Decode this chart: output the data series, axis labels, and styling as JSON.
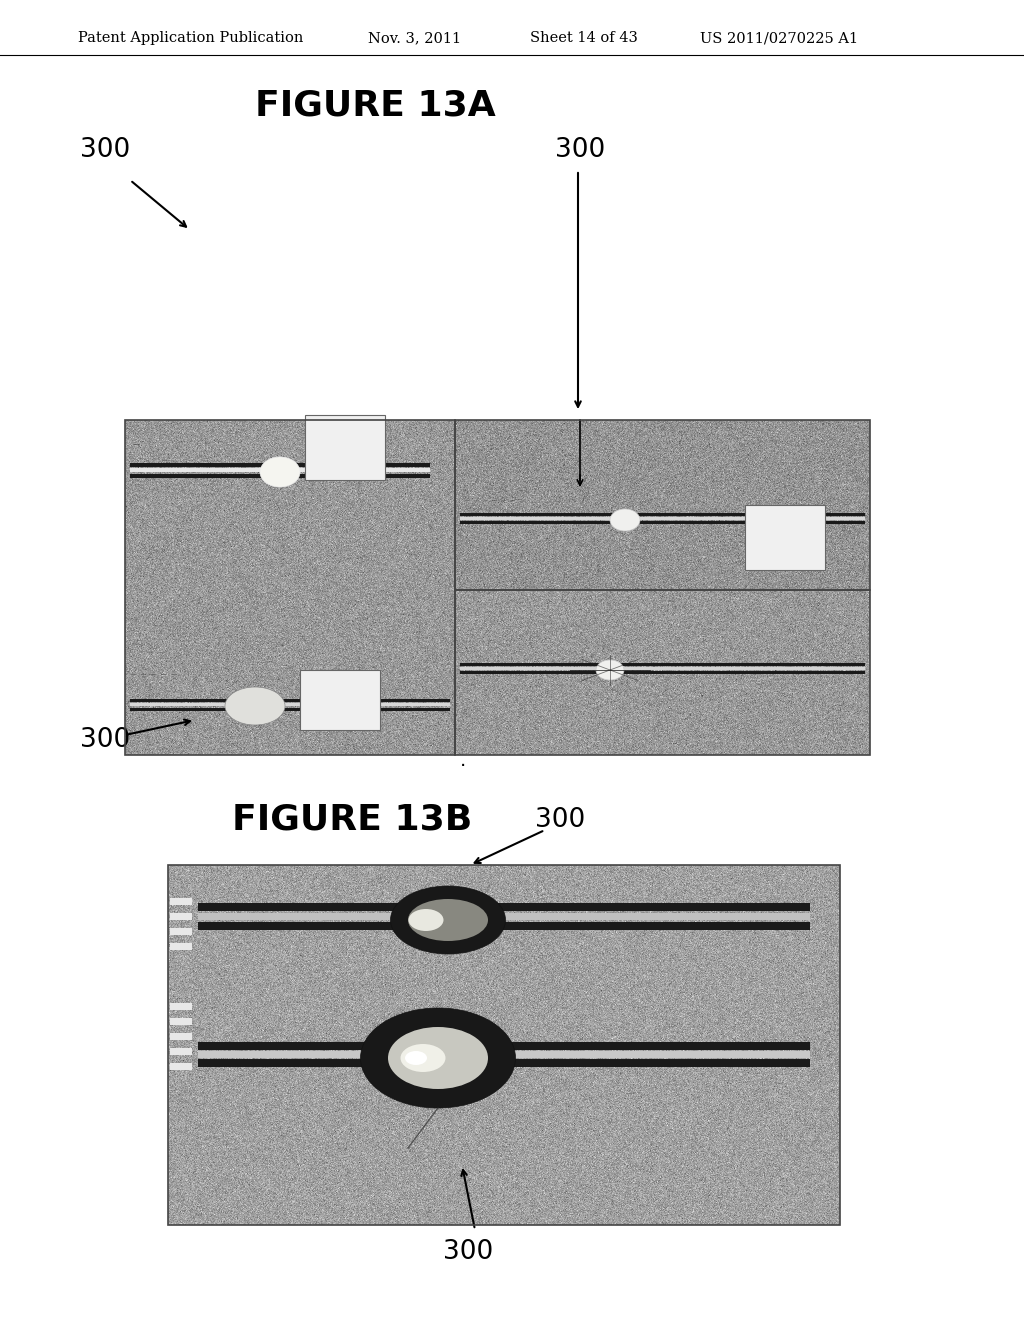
{
  "background_color": "#ffffff",
  "page_header": "Patent Application Publication",
  "page_header_date": "Nov. 3, 2011",
  "page_header_sheet": "Sheet 14 of 43",
  "page_header_patent": "US 2011/0270225 A1",
  "fig13a_title": "FIGURE 13A",
  "fig13b_title": "FIGURE 13B",
  "label_300": "300",
  "header_fontsize": 10.5,
  "title_fontsize": 26,
  "label_fontsize": 19,
  "header_color": "#000000",
  "title_color": "#000000",
  "label_color": "#000000"
}
